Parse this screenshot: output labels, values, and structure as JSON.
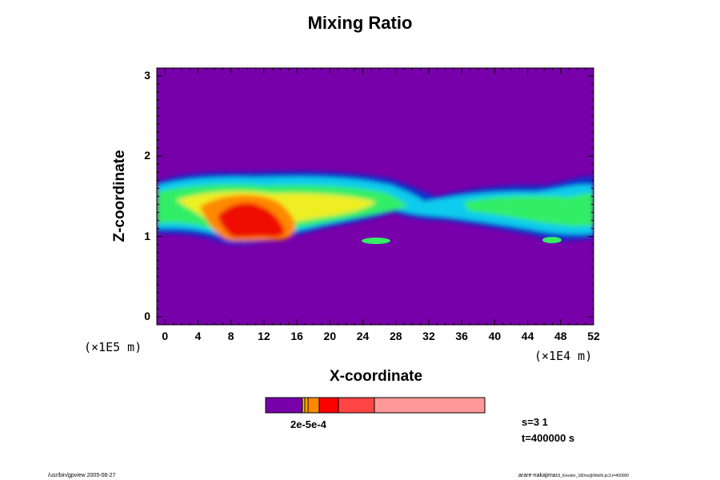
{
  "chart_data": {
    "type": "heatmap",
    "title": "Mixing Ratio",
    "xlabel": "X-coordinate",
    "ylabel": "Z-coordinate",
    "x_scale_label": "(×1E4 m)",
    "y_scale_label": "(×1E5 m)",
    "xlim": [
      -1,
      52
    ],
    "ylim": [
      -0.1,
      3.1
    ],
    "x_ticks": [
      "0",
      "4",
      "8",
      "12",
      "16",
      "20",
      "24",
      "28",
      "32",
      "36",
      "40",
      "44",
      "48",
      "52"
    ],
    "y_ticks": [
      "0",
      "1",
      "2",
      "3"
    ],
    "background_color": "#7700aa",
    "colorbar": {
      "label": "2e-5e-4",
      "colors": [
        "#7700aa",
        "#ffcc00",
        "#ff9900",
        "#ff0000",
        "#ff4444",
        "#ff9999"
      ]
    },
    "cloud_layer_z_range": [
      0.85,
      1.75
    ],
    "max_region": {
      "x_range": [
        7,
        15
      ],
      "z_range": [
        0.9,
        1.5
      ]
    }
  },
  "info": {
    "s_label": "s=3 1",
    "t_label": "t=400000 s"
  },
  "footer": {
    "left": "/usr/bin/gpview 2005-08-27",
    "right_main": "arare-nakajima",
    "right_small": "03_Kessler_180no@MixRt.pc3,t=400000"
  }
}
